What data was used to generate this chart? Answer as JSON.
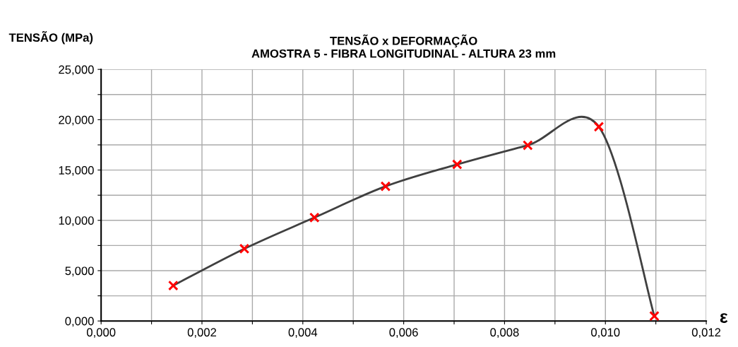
{
  "chart_data": {
    "type": "line",
    "title": "TENSÃO x DEFORMAÇÃO\nAMOSTRA 5 - FIBRA LONGITUDINAL - ALTURA 23 mm",
    "xlabel": "ε",
    "ylabel": "TENSÃO (MPa)",
    "x": [
      0.00143,
      0.00284,
      0.00423,
      0.00564,
      0.00706,
      0.00846,
      0.00987,
      0.01097
    ],
    "series": [
      {
        "color": "#404040",
        "colors": [
          "#ff0000",
          "#ff0000",
          "#ff0000",
          "#ff0000",
          "#ff0000",
          "#ff0000",
          "#ff0000",
          "#ff0000"
        ],
        "values": [
          3.52,
          7.18,
          10.28,
          13.38,
          15.56,
          17.46,
          19.3,
          0.49
        ]
      }
    ],
    "xlim": [
      0,
      0.012
    ],
    "ylim": [
      0,
      25
    ],
    "xticks": [
      {
        "value": 0,
        "label": "0,000"
      },
      {
        "value": 0.001,
        "label": null
      },
      {
        "value": 0.002,
        "label": "0,002"
      },
      {
        "value": 0.003,
        "label": null
      },
      {
        "value": 0.004,
        "label": "0,004"
      },
      {
        "value": 0.005,
        "label": null
      },
      {
        "value": 0.006,
        "label": "0,006"
      },
      {
        "value": 0.007,
        "label": null
      },
      {
        "value": 0.008,
        "label": "0,008"
      },
      {
        "value": 0.009,
        "label": null
      },
      {
        "value": 0.01,
        "label": "0,010"
      },
      {
        "value": 0.011,
        "label": null
      },
      {
        "value": 0.012,
        "label": "0,012"
      }
    ],
    "yticks": [
      {
        "value": 0,
        "label": "0,000"
      },
      {
        "value": 2.5,
        "label": null
      },
      {
        "value": 5,
        "label": "5,000"
      },
      {
        "value": 7.5,
        "label": null
      },
      {
        "value": 10,
        "label": "10,000"
      },
      {
        "value": 12.5,
        "label": null
      },
      {
        "value": 15,
        "label": "15,000"
      },
      {
        "value": 17.5,
        "label": null
      },
      {
        "value": 20,
        "label": "20,000"
      },
      {
        "value": 22.5,
        "label": null
      },
      {
        "value": 25,
        "label": "25,000"
      }
    ],
    "grid": true,
    "marker": "cross",
    "line_style": "solid"
  }
}
